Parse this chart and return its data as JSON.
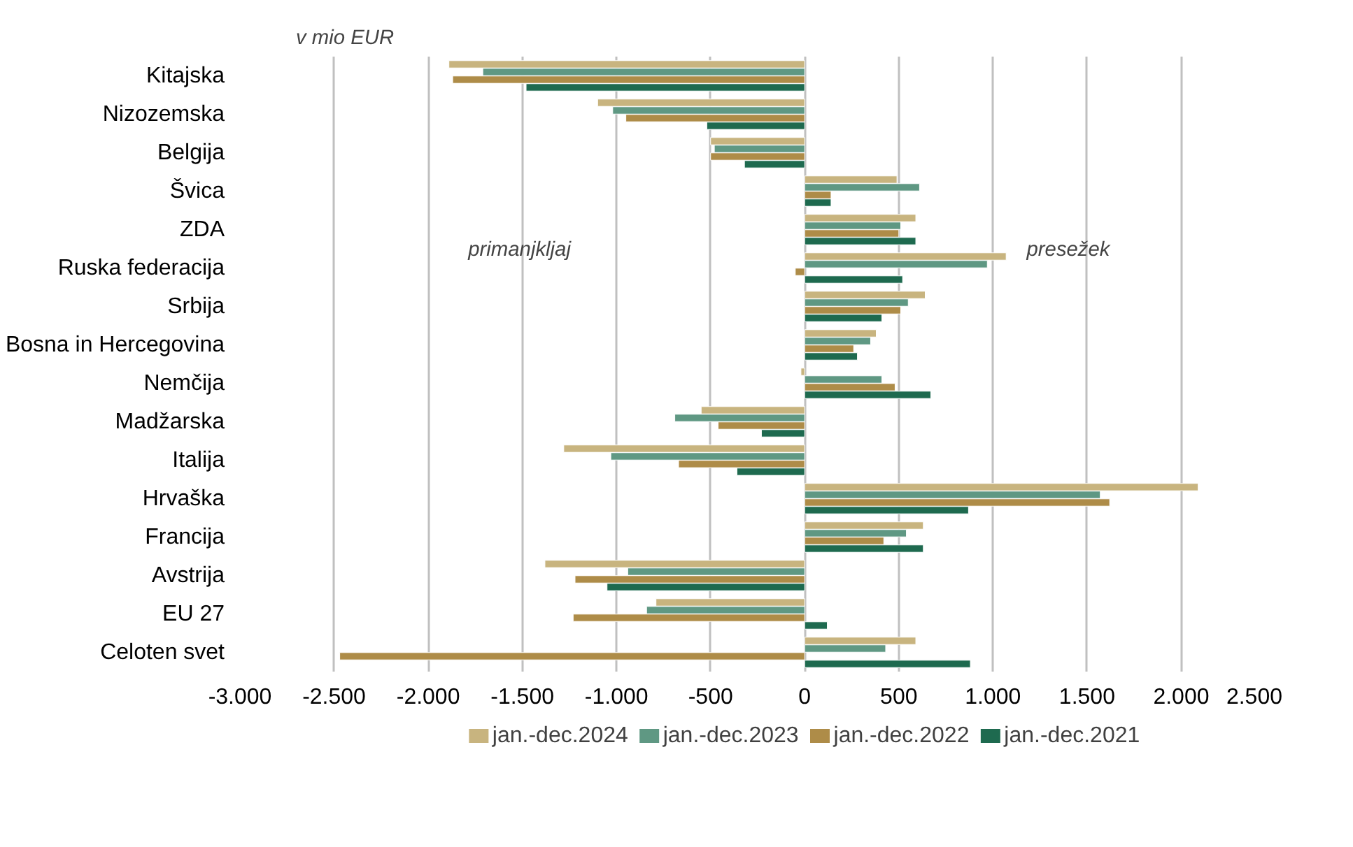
{
  "chart_data": {
    "type": "bar",
    "orientation": "horizontal",
    "categories": [
      "Kitajska",
      "Nizozemska",
      "Belgija",
      "Švica",
      "ZDA",
      "Ruska federacija",
      "Srbija",
      "Bosna in Hercegovina",
      "Nemčija",
      "Madžarska",
      "Italija",
      "Hrvaška",
      "Francija",
      "Avstrija",
      "EU 27",
      "Celoten svet"
    ],
    "series": [
      {
        "name": "jan.-dec.2024",
        "color": "#c8b47f",
        "values": [
          -1890,
          -1100,
          -500,
          490,
          590,
          1070,
          640,
          380,
          -20,
          -550,
          -1280,
          2090,
          630,
          -1380,
          -790,
          590
        ]
      },
      {
        "name": "jan.-dec.2023",
        "color": "#5f9883",
        "values": [
          -1710,
          -1020,
          -480,
          610,
          510,
          970,
          550,
          350,
          410,
          -690,
          -1030,
          1570,
          540,
          -940,
          -840,
          430
        ]
      },
      {
        "name": "jan.-dec.2022",
        "color": "#ae8c48",
        "values": [
          -1870,
          -950,
          -500,
          140,
          500,
          -50,
          510,
          260,
          480,
          -460,
          -670,
          1620,
          420,
          -1220,
          -1230,
          -2470
        ]
      },
      {
        "name": "jan.-dec.2021",
        "color": "#1e6a4f",
        "values": [
          -1480,
          -520,
          -320,
          140,
          590,
          520,
          410,
          280,
          670,
          -230,
          -360,
          870,
          630,
          -1050,
          120,
          880
        ]
      }
    ],
    "xlim": [
      -3000,
      2500
    ],
    "xticks": [
      {
        "value": -3000,
        "label": "-3.000"
      },
      {
        "value": -2500,
        "label": "-2.500"
      },
      {
        "value": -2000,
        "label": "-2.000"
      },
      {
        "value": -1500,
        "label": "-1.500"
      },
      {
        "value": -1000,
        "label": "-1.000"
      },
      -500,
      0,
      500,
      {
        "value": 1000,
        "label": "1.000"
      },
      {
        "value": 1500,
        "label": "1.500"
      },
      {
        "value": 2000,
        "label": "2.000"
      },
      {
        "value": 2500,
        "label": "2.500"
      }
    ],
    "grid": "x",
    "legend": "bottom",
    "annotations": [
      "v mio EUR",
      "primanjkljaj",
      "presežek"
    ]
  }
}
